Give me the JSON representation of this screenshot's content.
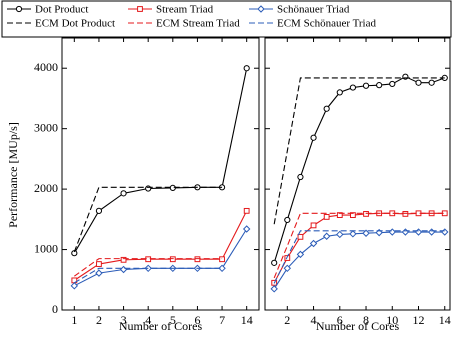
{
  "chart_data": [
    {
      "type": "line",
      "y_label": "Performance [MUp/s]",
      "x_label": "Number of Cores",
      "categories": [
        "1",
        "2",
        "3",
        "4",
        "5",
        "6",
        "7",
        "14"
      ],
      "ylim": [
        0,
        4500
      ],
      "yticks": [
        0,
        1000,
        2000,
        3000,
        4000
      ],
      "series": [
        {
          "name": "Dot Product",
          "color": "#000000",
          "marker": "circle",
          "dash": false,
          "values": [
            940,
            1640,
            1930,
            2010,
            2020,
            2030,
            2030,
            4000
          ]
        },
        {
          "name": "Stream Triad",
          "color": "#e41a1c",
          "marker": "square",
          "dash": false,
          "values": [
            490,
            760,
            830,
            840,
            840,
            840,
            840,
            1640
          ]
        },
        {
          "name": "Schönauer Triad",
          "color": "#2b5cb8",
          "marker": "diamond",
          "dash": false,
          "values": [
            400,
            610,
            670,
            690,
            690,
            690,
            690,
            1340
          ]
        },
        {
          "name": "ECM Dot Product",
          "color": "#000000",
          "marker": null,
          "dash": true,
          "values": [
            960,
            2030,
            2030,
            2030,
            2030,
            2030,
            2030,
            null
          ]
        },
        {
          "name": "ECM Stream Triad",
          "color": "#e41a1c",
          "marker": null,
          "dash": true,
          "values": [
            560,
            850,
            850,
            850,
            850,
            850,
            850,
            null
          ]
        },
        {
          "name": "ECM Schönauer Triad",
          "color": "#2b5cb8",
          "marker": null,
          "dash": true,
          "values": [
            450,
            690,
            690,
            690,
            690,
            690,
            690,
            null
          ]
        }
      ]
    },
    {
      "type": "line",
      "x_label": "Number of Cores",
      "x": [
        1,
        2,
        3,
        4,
        5,
        6,
        7,
        8,
        9,
        10,
        11,
        12,
        13,
        14
      ],
      "xlim": [
        0.3,
        14.4
      ],
      "xticks": [
        2,
        4,
        6,
        8,
        10,
        12,
        14
      ],
      "ylim": [
        0,
        4500
      ],
      "yticks": [
        0,
        1000,
        2000,
        3000,
        4000
      ],
      "series": [
        {
          "color": "#000000",
          "marker": "circle",
          "dash": false,
          "values": [
            780,
            1490,
            2200,
            2850,
            3330,
            3600,
            3680,
            3710,
            3720,
            3740,
            3860,
            3760,
            3760,
            3840
          ]
        },
        {
          "color": "#e41a1c",
          "marker": "square",
          "dash": false,
          "values": [
            450,
            860,
            1210,
            1400,
            1540,
            1570,
            1570,
            1590,
            1600,
            1600,
            1590,
            1600,
            1600,
            1600
          ]
        },
        {
          "color": "#2b5cb8",
          "marker": "diamond",
          "dash": false,
          "values": [
            350,
            690,
            920,
            1100,
            1220,
            1250,
            1260,
            1270,
            1280,
            1290,
            1290,
            1290,
            1290,
            1290
          ]
        },
        {
          "color": "#000000",
          "marker": null,
          "dash": true,
          "values": [
            1420,
            2630,
            3840,
            3840,
            3840,
            3840,
            3840,
            3840,
            3840,
            3840,
            3840,
            3840,
            3840,
            3840
          ]
        },
        {
          "color": "#e41a1c",
          "marker": null,
          "dash": true,
          "values": [
            530,
            1060,
            1600,
            1600,
            1600,
            1600,
            1600,
            1600,
            1600,
            1600,
            1600,
            1600,
            1600,
            1600
          ]
        },
        {
          "color": "#2b5cb8",
          "marker": null,
          "dash": true,
          "values": [
            440,
            880,
            1310,
            1310,
            1310,
            1310,
            1310,
            1310,
            1310,
            1310,
            1310,
            1310,
            1310,
            1310
          ]
        }
      ]
    }
  ]
}
